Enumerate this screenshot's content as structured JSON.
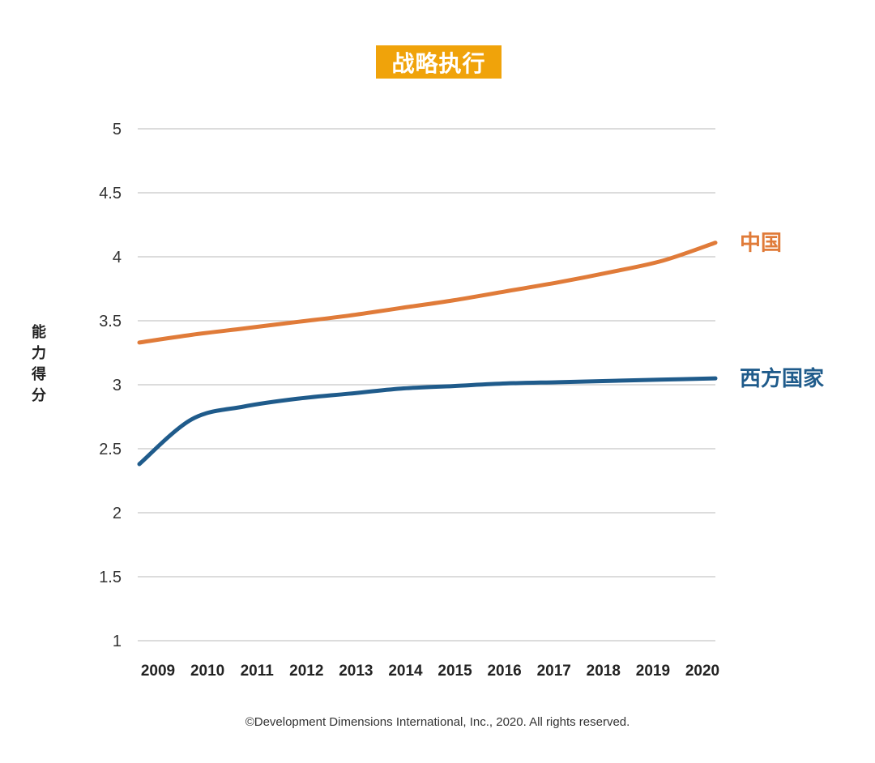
{
  "chart_data": {
    "type": "line",
    "title": "战略执行",
    "ylabel": "能力得分",
    "xlabel": "",
    "x": [
      "2009",
      "2010",
      "2011",
      "2012",
      "2013",
      "2014",
      "2015",
      "2016",
      "2017",
      "2018",
      "2019",
      "2020"
    ],
    "yticks": [
      "5",
      "4.5",
      "4",
      "3.5",
      "3",
      "2.5",
      "2",
      "1.5",
      "1"
    ],
    "ylim": [
      1,
      5
    ],
    "grid": true,
    "legend": "inline-right",
    "series": [
      {
        "name": "中国",
        "color": "#e07b39",
        "values": [
          3.33,
          3.39,
          3.44,
          3.49,
          3.54,
          3.6,
          3.66,
          3.73,
          3.8,
          3.88,
          3.97,
          4.11
        ]
      },
      {
        "name": "西方国家",
        "color": "#1f5b8b",
        "values": [
          2.38,
          2.73,
          2.83,
          2.89,
          2.93,
          2.97,
          2.99,
          3.01,
          3.02,
          3.03,
          3.04,
          3.05
        ]
      }
    ]
  },
  "footer": {
    "copyright": "©Development Dimensions International, Inc., 2020. All rights reserved."
  }
}
